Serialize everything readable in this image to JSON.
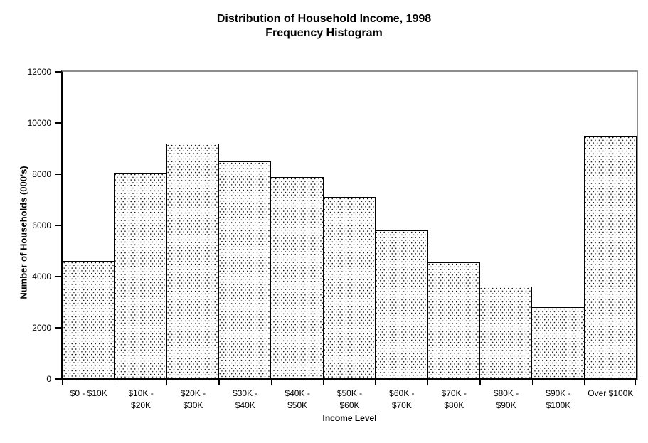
{
  "chart_title": {
    "line1": "Distribution of Household Income, 1998",
    "line2": "Frequency Histogram"
  },
  "chart_data": {
    "type": "bar",
    "title": "Distribution of Household Income, 1998",
    "subtitle": "Frequency Histogram",
    "xlabel": "Income Level",
    "ylabel": "Number of Households (000's)",
    "categories": [
      "$0 - $10K",
      "$10K -\n$20K",
      "$20K -\n$30K",
      "$30K -\n$40K",
      "$40K -\n$50K",
      "$50K -\n$60K",
      "$60K -\n$70K",
      "$70K -\n$80K",
      "$80K -\n$90K",
      "$90K -\n$100K",
      "Over $100K"
    ],
    "values": [
      4600,
      8050,
      9200,
      8500,
      7900,
      7100,
      5800,
      4550,
      3600,
      2800,
      9500
    ],
    "ylim": [
      0,
      12000
    ],
    "yticks": [
      0,
      2000,
      4000,
      6000,
      8000,
      10000,
      12000
    ],
    "bar_gap": 0,
    "grid": false,
    "legend": "none",
    "styles": {
      "background": "#ffffff",
      "bar_fill": "white with small black dot pattern",
      "bar_border_color": "#000000",
      "axis_color": "#000000",
      "frame_top_right_color": "#8c8c8c"
    }
  }
}
